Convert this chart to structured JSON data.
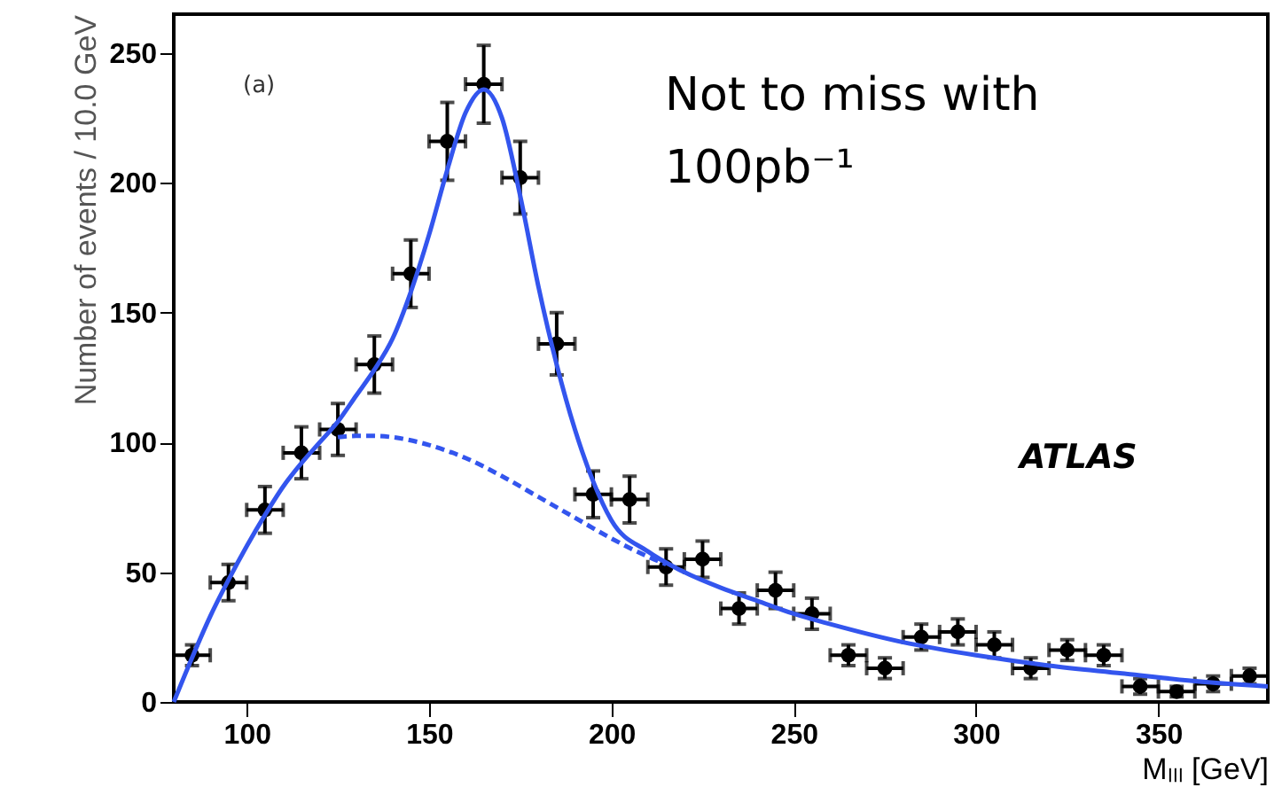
{
  "chart_data": {
    "type": "scatter",
    "xlabel": "Mₗₗₗ [GeV]",
    "ylabel": "Number of events / 10.0 GeV",
    "annotations": [
      "(a)",
      "ATLAS",
      "Not to miss with 100pb⁻¹"
    ],
    "xlim": [
      80,
      380
    ],
    "ylim": [
      0,
      265
    ],
    "xticks": [
      100,
      150,
      200,
      250,
      300,
      350
    ],
    "yticks": [
      0,
      50,
      100,
      150,
      200,
      250
    ],
    "grid": false,
    "series": [
      {
        "color": "#000000",
        "marker": "circle",
        "x": [
          85,
          95,
          105,
          115,
          125,
          135,
          145,
          155,
          165,
          175,
          185,
          195,
          205,
          215,
          225,
          235,
          245,
          255,
          265,
          275,
          285,
          295,
          305,
          315,
          325,
          335,
          345,
          355,
          365,
          375
        ],
        "values": [
          18,
          46,
          74,
          96,
          105,
          130,
          165,
          216,
          238,
          202,
          138,
          80,
          78,
          52,
          55,
          36,
          43,
          34,
          18,
          13,
          25,
          27,
          22,
          13,
          20,
          18,
          6,
          4,
          7,
          10
        ],
        "errors": [
          4,
          7,
          9,
          10,
          10,
          11,
          13,
          15,
          15,
          14,
          12,
          9,
          9,
          7,
          7,
          6,
          7,
          6,
          4,
          4,
          5,
          5,
          5,
          4,
          4,
          4,
          3,
          2,
          3,
          3
        ],
        "xerrors": [
          5,
          5,
          5,
          5,
          5,
          5,
          5,
          5,
          5,
          5,
          5,
          5,
          5,
          5,
          5,
          5,
          5,
          5,
          5,
          5,
          5,
          5,
          5,
          5,
          5,
          5,
          5,
          5,
          5,
          5
        ]
      },
      {
        "type": "line",
        "color": "#3355ee",
        "line_style": "solid",
        "x": [
          80,
          85,
          90,
          95,
          100,
          105,
          110,
          115,
          120,
          125,
          130,
          135,
          140,
          145,
          150,
          155,
          160,
          165,
          170,
          175,
          180,
          185,
          190,
          195,
          200,
          210,
          220,
          230,
          240,
          250,
          260,
          280,
          300,
          320,
          340,
          360,
          380
        ],
        "values": [
          0,
          17,
          33,
          47,
          60,
          72,
          83,
          92,
          100,
          108,
          118,
          128,
          140,
          158,
          180,
          205,
          227,
          236,
          225,
          195,
          160,
          130,
          105,
          85,
          70,
          58,
          50,
          44,
          39,
          34,
          30,
          23,
          18,
          14,
          11,
          8,
          6
        ]
      },
      {
        "type": "line",
        "color": "#3355ee",
        "line_style": "dashed",
        "x": [
          125,
          130,
          135,
          140,
          150,
          160,
          170,
          180,
          190,
          200,
          210,
          215
        ],
        "values": [
          102,
          102.5,
          102.5,
          102,
          99,
          94,
          87,
          79,
          71,
          63,
          56,
          53
        ]
      }
    ]
  }
}
